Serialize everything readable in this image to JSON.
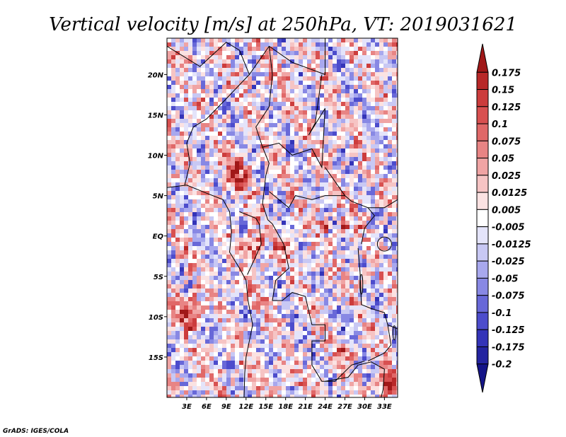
{
  "chart_data": {
    "type": "heatmap",
    "title": "Vertical velocity [m/s] at 250hPa, VT: 2019031621",
    "x_ticks": [
      "3E",
      "6E",
      "9E",
      "12E",
      "15E",
      "18E",
      "21E",
      "24E",
      "27E",
      "30E",
      "33E"
    ],
    "x_tick_values": [
      3,
      6,
      9,
      12,
      15,
      18,
      21,
      24,
      27,
      30,
      33
    ],
    "y_ticks": [
      "20N",
      "15N",
      "10N",
      "5N",
      "EQ",
      "5S",
      "10S",
      "15S"
    ],
    "y_tick_values": [
      20,
      15,
      10,
      5,
      0,
      -5,
      -10,
      -15
    ],
    "xlim": [
      0,
      35
    ],
    "ylim": [
      -20,
      24.5
    ],
    "colorbar_labels": [
      "0.175",
      "0.15",
      "0.125",
      "0.1",
      "0.075",
      "0.05",
      "0.025",
      "0.0125",
      "0.005",
      "-0.005",
      "-0.0125",
      "-0.025",
      "-0.05",
      "-0.075",
      "-0.1",
      "-0.125",
      "-0.175",
      "-0.2"
    ],
    "colorbar_colors": [
      "#a01818",
      "#b82828",
      "#cc3c3c",
      "#d85050",
      "#e06868",
      "#e88484",
      "#f0a4a4",
      "#f6c4c4",
      "#fbe2e2",
      "#ffffff",
      "#e4e4fa",
      "#c8c8f4",
      "#a8a8ee",
      "#8888e4",
      "#6868d8",
      "#4c4ccc",
      "#3434b8",
      "#2424a0",
      "#141488"
    ],
    "field_summary": "noisy mixed positive (red) and negative (blue) vertical velocity field with strongest ascent over Congo basin, Lake Victoria region and southern Mozambique"
  },
  "credit": "GrADS: IGES/COLA"
}
